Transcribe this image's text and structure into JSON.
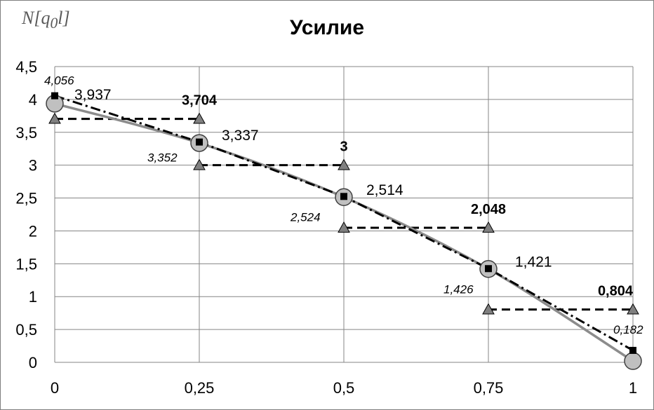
{
  "chart_data": {
    "type": "line",
    "title": "Усилие",
    "ylabel": "N[q0l]",
    "ylabel_parts": {
      "base": "N[q",
      "sub": "0",
      "tail": "l]"
    },
    "xlim": [
      0,
      1
    ],
    "ylim": [
      0,
      4.5
    ],
    "x_ticks": [
      0,
      0.25,
      0.5,
      0.75,
      1
    ],
    "x_tick_labels": [
      "0",
      "0,25",
      "0,5",
      "0,75",
      "1"
    ],
    "y_ticks": [
      0,
      0.5,
      1,
      1.5,
      2,
      2.5,
      3,
      3.5,
      4,
      4.5
    ],
    "y_tick_labels": [
      "0",
      "0,5",
      "1",
      "1,5",
      "2",
      "2,5",
      "3",
      "3,5",
      "4",
      "4,5"
    ],
    "grid": {
      "x": true,
      "y": true
    },
    "legend": "none",
    "series": [
      {
        "style": "solid-gray-line-circles",
        "color": "#8c8c8c",
        "points": [
          {
            "x": 0,
            "y": 3.937,
            "label": "3,937"
          },
          {
            "x": 0.25,
            "y": 3.337,
            "label": "3,337"
          },
          {
            "x": 0.5,
            "y": 2.514,
            "label": "2,514"
          },
          {
            "x": 0.75,
            "y": 1.421,
            "label": "1,421"
          },
          {
            "x": 1,
            "y": 0.02,
            "label": ""
          }
        ]
      },
      {
        "style": "dashdot-black-squares",
        "color": "#000000",
        "points": [
          {
            "x": 0,
            "y": 4.056,
            "label": "4,056"
          },
          {
            "x": 0.25,
            "y": 3.352,
            "label": "3,352"
          },
          {
            "x": 0.5,
            "y": 2.524,
            "label": "2,524"
          },
          {
            "x": 0.75,
            "y": 1.426,
            "label": "1,426"
          },
          {
            "x": 1,
            "y": 0.182,
            "label": "0,182"
          }
        ]
      },
      {
        "style": "dashed-step-triangles",
        "color": "#000000",
        "segments": [
          {
            "x1": 0,
            "x2": 0.25,
            "y": 3.704,
            "label": "3,704"
          },
          {
            "x1": 0.25,
            "x2": 0.5,
            "y": 3,
            "label": "3"
          },
          {
            "x1": 0.5,
            "x2": 0.75,
            "y": 2.048,
            "label": "2,048"
          },
          {
            "x1": 0.75,
            "x2": 1,
            "y": 0.804,
            "label": "0,804"
          }
        ]
      }
    ]
  }
}
